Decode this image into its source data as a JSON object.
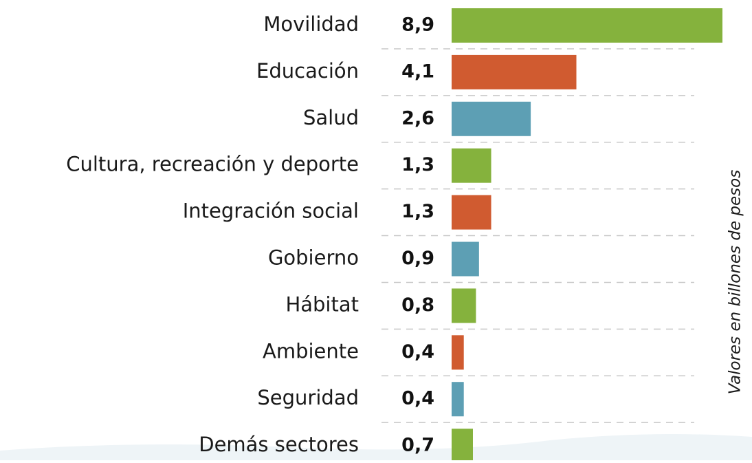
{
  "chart_data": {
    "type": "bar",
    "orientation": "horizontal",
    "categories": [
      "Movilidad",
      "Educación",
      "Salud",
      "Cultura, recreación y deporte",
      "Integración social",
      "Gobierno",
      "Hábitat",
      "Ambiente",
      "Seguridad",
      "Demás sectores"
    ],
    "values": [
      8.9,
      4.1,
      2.6,
      1.3,
      1.3,
      0.9,
      0.8,
      0.4,
      0.4,
      0.7
    ],
    "value_labels": [
      "8,9",
      "4,1",
      "2,6",
      "1,3",
      "1,3",
      "0,9",
      "0,8",
      "0,4",
      "0,4",
      "0,7"
    ],
    "colors": [
      "#85b23d",
      "#d05b30",
      "#5d9fb4",
      "#85b23d",
      "#d05b30",
      "#5d9fb4",
      "#85b23d",
      "#d05b30",
      "#5d9fb4",
      "#85b23d"
    ],
    "axis_label": "Valores en billones de pesos"
  }
}
